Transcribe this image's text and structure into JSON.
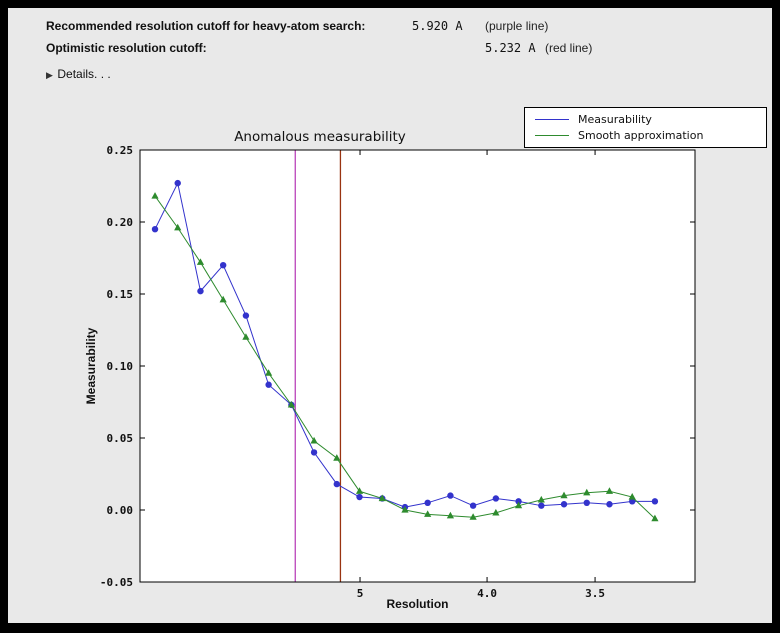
{
  "header": {
    "row1": {
      "label": "Recommended resolution cutoff for heavy-atom search:",
      "value": "5.920 A",
      "note": "(purple line)"
    },
    "row2": {
      "label": "Optimistic resolution cutoff:",
      "value": "5.232 A",
      "note": "(red line)"
    },
    "details": {
      "arrow": "▶",
      "label": "Details. . ."
    }
  },
  "colors": {
    "panel_bg": "#e9e9e9",
    "plot_bg": "#ffffff",
    "purple_line": "#bb44bb",
    "red_line": "#993311"
  },
  "chart_data": {
    "type": "line",
    "title": "Anomalous measurability",
    "xlabel": "Resolution",
    "ylabel": "Measurability",
    "x_scale_note": "x plotted as 1/d^2 (A^-2); axis ticks labeled in resolution d (A), decreasing to the right",
    "x_axis": {
      "range": [
        0.00103,
        0.09933
      ],
      "ticks": [
        {
          "value": 0.04,
          "label": "5"
        },
        {
          "value": 0.0625,
          "label": "4.0"
        },
        {
          "value": 0.08163,
          "label": "3.5"
        }
      ]
    },
    "y_axis": {
      "range": [
        -0.05,
        0.25
      ],
      "ticks": [
        -0.05,
        0,
        0.05,
        0.1,
        0.15,
        0.2,
        0.25
      ]
    },
    "x": [
      0.00369,
      0.00771,
      0.01174,
      0.01576,
      0.01979,
      0.02381,
      0.02784,
      0.03186,
      0.03589,
      0.03991,
      0.04394,
      0.04796,
      0.05198,
      0.05601,
      0.06003,
      0.06406,
      0.06808,
      0.07211,
      0.07613,
      0.08016,
      0.08418,
      0.08821,
      0.09223
    ],
    "resolution_A": [
      16.5,
      11.4,
      9.2,
      8.0,
      7.1,
      6.5,
      6.0,
      5.6,
      5.3,
      5.0,
      4.8,
      4.6,
      4.4,
      4.2,
      4.1,
      4.0,
      3.8,
      3.7,
      3.6,
      3.5,
      3.4,
      3.4,
      3.3
    ],
    "series": [
      {
        "name": "Measurability",
        "color": "#3333cc",
        "marker": "circle",
        "y": [
          0.195,
          0.227,
          0.152,
          0.17,
          0.135,
          0.087,
          0.073,
          0.04,
          0.018,
          0.009,
          0.008,
          0.002,
          0.005,
          0.01,
          0.003,
          0.008,
          0.006,
          0.003,
          0.004,
          0.005,
          0.004,
          0.006,
          0.006
        ]
      },
      {
        "name": "Smooth approximation",
        "color": "#2e8b2e",
        "marker": "triangle",
        "y": [
          0.218,
          0.196,
          0.172,
          0.146,
          0.12,
          0.095,
          0.073,
          0.048,
          0.036,
          0.013,
          0.008,
          0.0,
          -0.003,
          -0.004,
          -0.005,
          -0.002,
          0.003,
          0.007,
          0.01,
          0.012,
          0.013,
          0.009,
          -0.006
        ]
      }
    ],
    "vlines": [
      {
        "x": 0.02853,
        "color": "#bb44bb",
        "meaning": "recommended cutoff 5.920 A (purple line)"
      },
      {
        "x": 0.03653,
        "color": "#993311",
        "meaning": "optimistic cutoff 5.232 A (red line)"
      }
    ],
    "legend": {
      "position": "upper right"
    }
  }
}
